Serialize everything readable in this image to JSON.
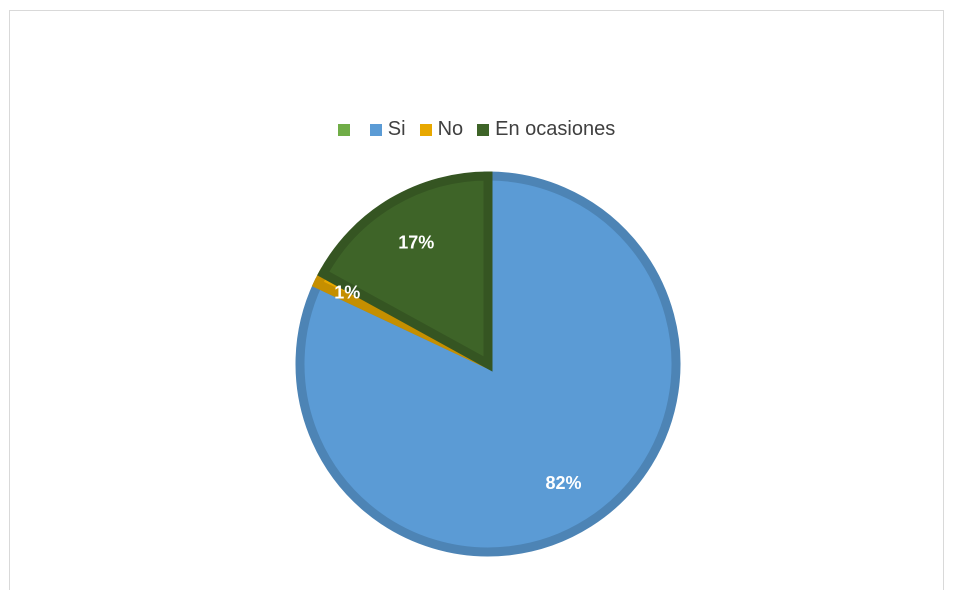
{
  "chart_data": {
    "type": "pie",
    "title": "",
    "series": [
      {
        "name": "",
        "color": "#70AD47",
        "value": 0,
        "label": ""
      },
      {
        "name": "Si",
        "color": "#5B9BD5",
        "value": 82,
        "label": "82%"
      },
      {
        "name": "No",
        "color": "#E8A800",
        "value": 1,
        "label": "1%"
      },
      {
        "name": "En ocasiones",
        "color": "#3E6428",
        "value": 17,
        "label": "17%"
      }
    ],
    "legend_position": "top",
    "unit": "%"
  }
}
